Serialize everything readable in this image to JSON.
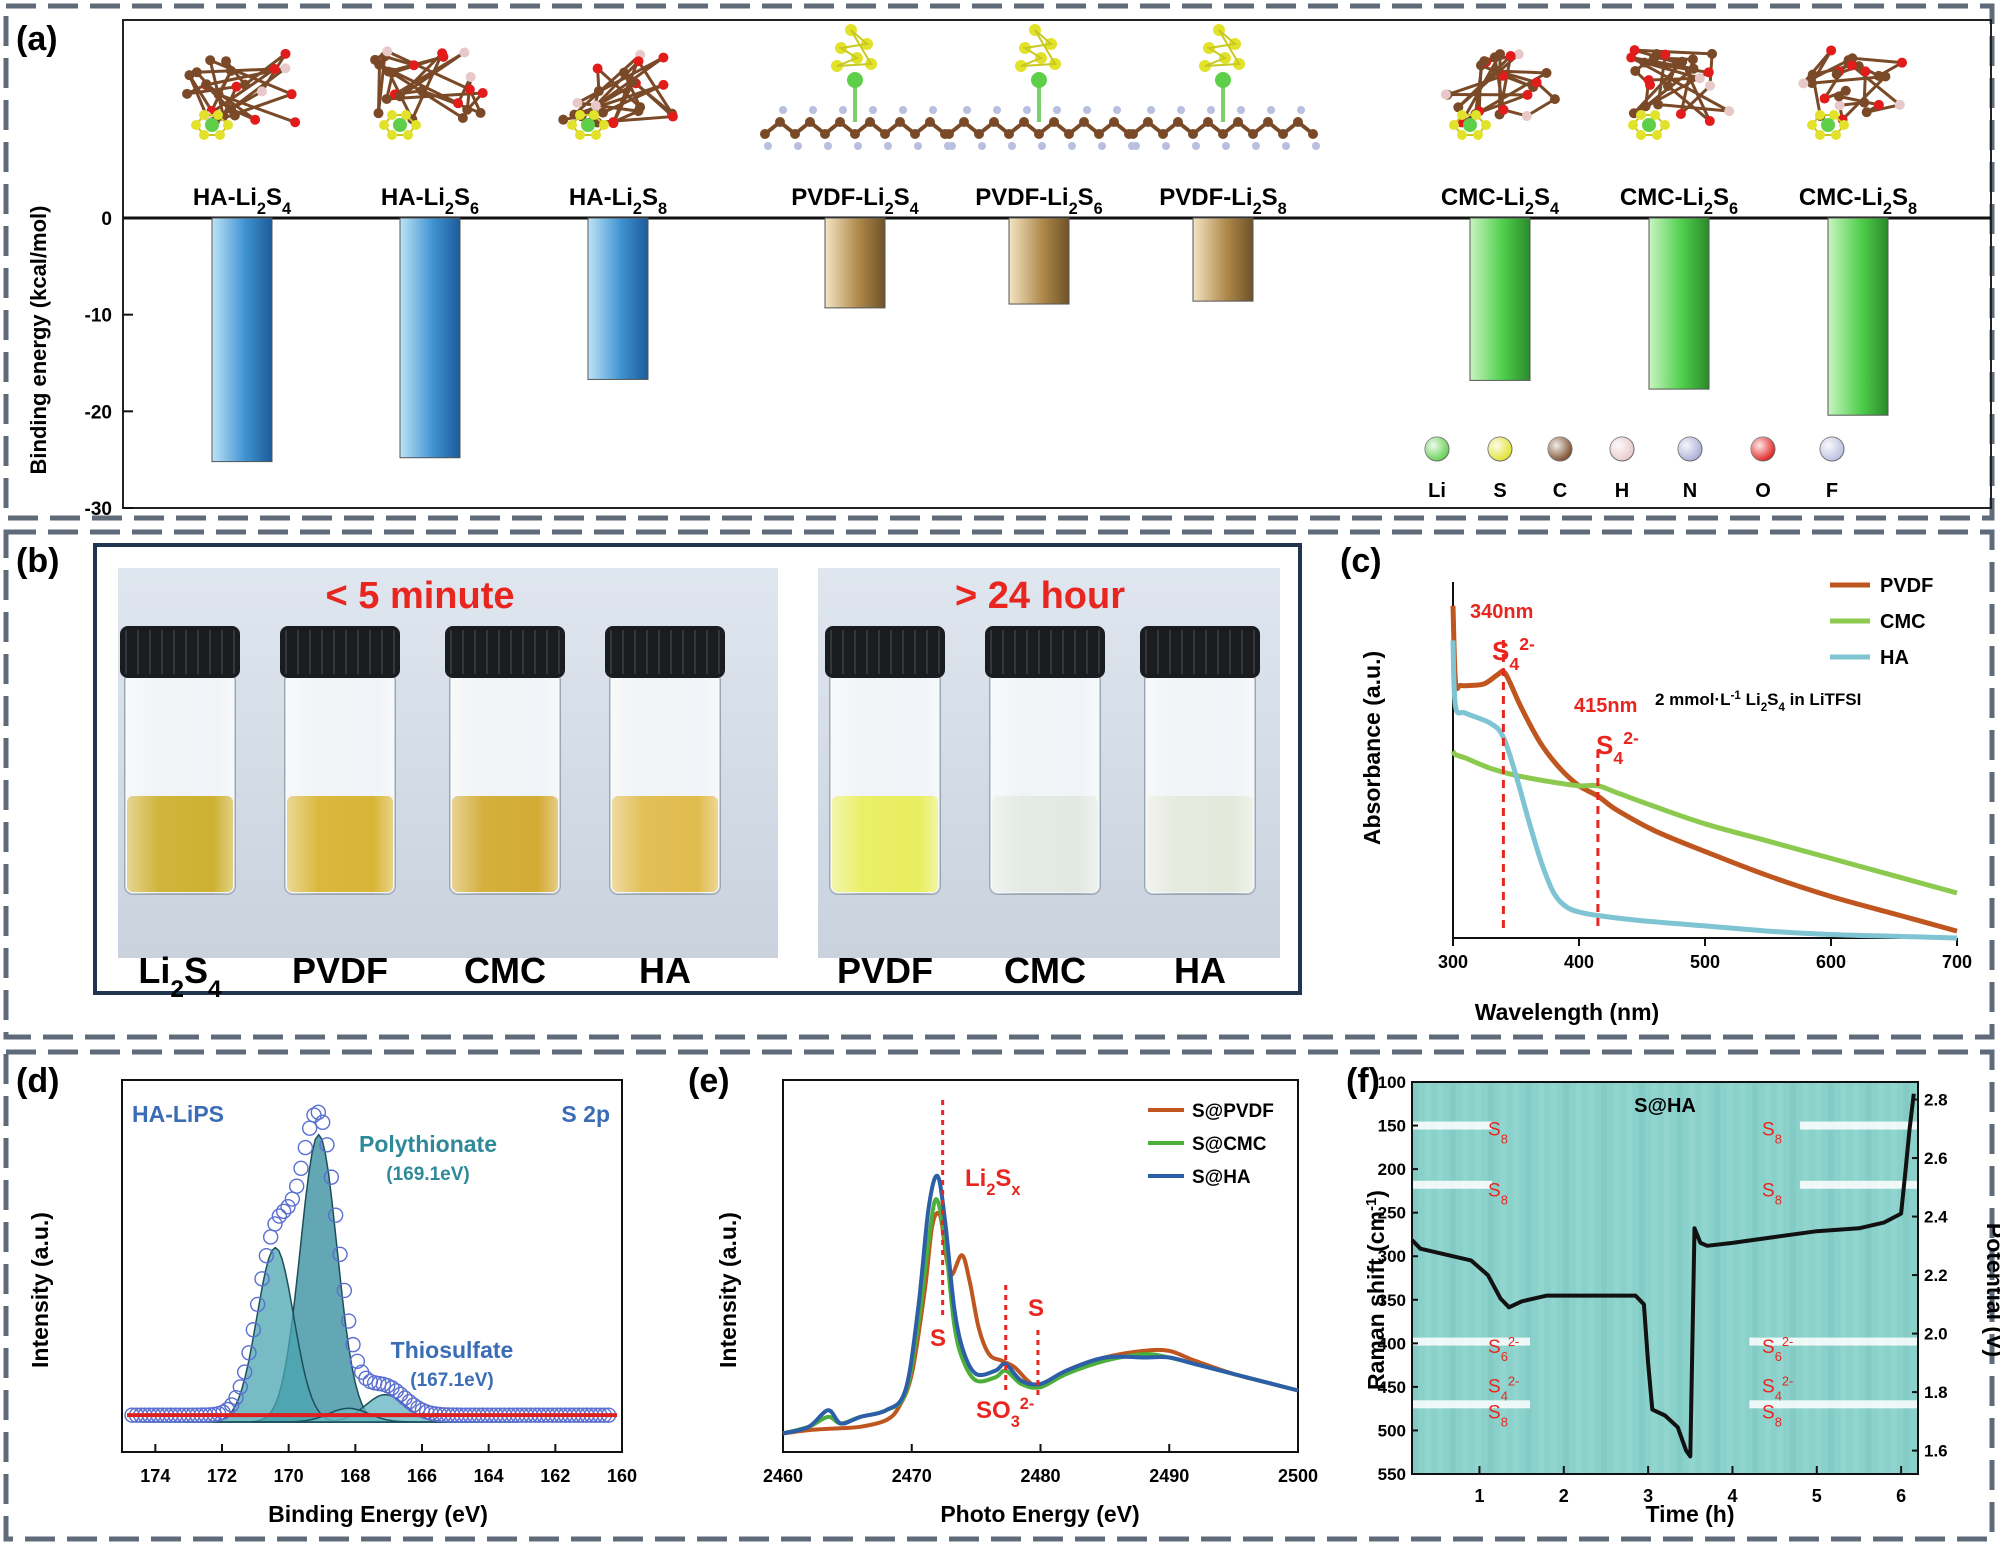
{
  "panels": {
    "a": "(a)",
    "b": "(b)",
    "c": "(c)",
    "d": "(d)",
    "e": "(e)",
    "f": "(f)"
  },
  "colors": {
    "frame": "#5f6b78",
    "red": "#e8261f",
    "blue_bar": "#3f93d2",
    "gold_bar": "#b08a4c",
    "green_bar": "#4fcf4c",
    "pvdf": "#c0561f",
    "cmc": "#8cc94f",
    "ha": "#7ec4d2",
    "e_pvdf": "#c0561f",
    "e_cmc": "#4caf3a",
    "e_ha": "#2c5fa8",
    "d_env": "#5a6fd0",
    "d_fill": "#2e8a99",
    "d_base": "#e02020",
    "f_bg": "#8ad1cb",
    "f_text": "#e8261f"
  },
  "chart_data": [
    {
      "id": "a",
      "type": "bar",
      "ylabel": "Binding energy (kcal/mol)",
      "ylim": [
        -30,
        0
      ],
      "yticks": [
        0,
        -10,
        -20,
        -30
      ],
      "categories": [
        "HA-Li2S4",
        "HA-Li2S6",
        "HA-Li2S8",
        "PVDF-Li2S4",
        "PVDF-Li2S6",
        "PVDF-Li2S8",
        "CMC-Li2S4",
        "CMC-Li2S6",
        "CMC-Li2S8"
      ],
      "labels": [
        {
          "pre": "HA-Li",
          "s1": "2",
          "mid": "S",
          "s2": "4"
        },
        {
          "pre": "HA-Li",
          "s1": "2",
          "mid": "S",
          "s2": "6"
        },
        {
          "pre": "HA-Li",
          "s1": "2",
          "mid": "S",
          "s2": "8"
        },
        {
          "pre": "PVDF-Li",
          "s1": "2",
          "mid": "S",
          "s2": "4"
        },
        {
          "pre": "PVDF-Li",
          "s1": "2",
          "mid": "S",
          "s2": "6"
        },
        {
          "pre": "PVDF-Li",
          "s1": "2",
          "mid": "S",
          "s2": "8"
        },
        {
          "pre": "CMC-Li",
          "s1": "2",
          "mid": "S",
          "s2": "4"
        },
        {
          "pre": "CMC-Li",
          "s1": "2",
          "mid": "S",
          "s2": "6"
        },
        {
          "pre": "CMC-Li",
          "s1": "2",
          "mid": "S",
          "s2": "8"
        }
      ],
      "values": [
        -25.2,
        -24.8,
        -16.7,
        -9.3,
        -8.9,
        -8.6,
        -16.8,
        -17.7,
        -20.4
      ],
      "groups": [
        "HA",
        "HA",
        "HA",
        "PVDF",
        "PVDF",
        "PVDF",
        "CMC",
        "CMC",
        "CMC"
      ],
      "atom_legend": [
        {
          "label": "Li",
          "color": "#5fcf4a"
        },
        {
          "label": "S",
          "color": "#e2e22a"
        },
        {
          "label": "C",
          "color": "#7a4a28"
        },
        {
          "label": "H",
          "color": "#e8c8c8"
        },
        {
          "label": "N",
          "color": "#a7acd6"
        },
        {
          "label": "O",
          "color": "#e21b1b"
        },
        {
          "label": "F",
          "color": "#b9bfe0"
        }
      ]
    },
    {
      "id": "c",
      "type": "line",
      "xlabel": "Wavelength (nm)",
      "ylabel": "Absorbance (a.u.)",
      "xlim": [
        300,
        700
      ],
      "xticks": [
        300,
        400,
        500,
        600,
        700
      ],
      "annotation": {
        "pre": "2 mmol·L",
        "sup": "-1",
        "mid": " Li",
        "sub1": "2",
        "mid2": "S",
        "sub2": "4",
        "post": " in LiTFSI"
      },
      "markers": [
        {
          "x": 340,
          "label": "340nm",
          "ion": "S",
          "sub": "4",
          "sup": "2-"
        },
        {
          "x": 415,
          "label": "415nm",
          "ion": "S",
          "sub": "4",
          "sup": "2-"
        }
      ],
      "series": [
        {
          "name": "PVDF",
          "x": [
            300,
            302,
            306,
            315,
            325,
            335,
            340,
            345,
            355,
            370,
            385,
            400,
            415,
            430,
            460,
            500,
            550,
            600,
            650,
            700
          ],
          "y": [
            0.96,
            0.74,
            0.73,
            0.73,
            0.735,
            0.76,
            0.77,
            0.74,
            0.66,
            0.56,
            0.49,
            0.44,
            0.41,
            0.37,
            0.31,
            0.25,
            0.18,
            0.12,
            0.07,
            0.02
          ]
        },
        {
          "name": "CMC",
          "x": [
            300,
            302,
            310,
            330,
            350,
            380,
            400,
            415,
            430,
            460,
            500,
            550,
            600,
            650,
            700
          ],
          "y": [
            0.54,
            0.53,
            0.52,
            0.49,
            0.47,
            0.45,
            0.44,
            0.44,
            0.42,
            0.38,
            0.33,
            0.28,
            0.23,
            0.18,
            0.13
          ]
        },
        {
          "name": "HA",
          "x": [
            300,
            302,
            310,
            330,
            340,
            350,
            360,
            370,
            380,
            390,
            400,
            415,
            450,
            500,
            550,
            600,
            650,
            700
          ],
          "y": [
            0.86,
            0.67,
            0.65,
            0.62,
            0.58,
            0.47,
            0.34,
            0.22,
            0.13,
            0.09,
            0.075,
            0.065,
            0.05,
            0.035,
            0.02,
            0.01,
            0.005,
            0.0
          ]
        }
      ]
    },
    {
      "id": "d",
      "type": "line",
      "title": "HA-LiPS",
      "tag": "S 2p",
      "xlabel": "Binding Energy (eV)",
      "ylabel": "Intensity (a.u.)",
      "xlim": [
        175,
        160
      ],
      "xticks": [
        174,
        172,
        170,
        168,
        166,
        164,
        162,
        160
      ],
      "peaks": [
        {
          "name": "Polythionate",
          "value": "(169.1eV)",
          "center": 169.1,
          "height": 0.84,
          "sigma": 0.55
        },
        {
          "name": "",
          "value": "",
          "center": 170.4,
          "height": 0.51,
          "sigma": 0.55
        },
        {
          "name": "Thiosulfate",
          "value": "(167.1eV)",
          "center": 167.1,
          "height": 0.08,
          "sigma": 0.6
        },
        {
          "name": "",
          "value": "",
          "center": 168.2,
          "height": 0.04,
          "sigma": 0.6
        }
      ]
    },
    {
      "id": "e",
      "type": "line",
      "xlabel": "Photo Energy (eV)",
      "ylabel": "Intensity (a.u.)",
      "xlim": [
        2460,
        2500
      ],
      "xticks": [
        2460,
        2470,
        2480,
        2490,
        2500
      ],
      "annotations": [
        {
          "text": "Li",
          "sub": "2",
          "mid": "S",
          "sub2": "x",
          "x": 2473.8
        },
        {
          "text": "S",
          "x": 2472.4
        },
        {
          "text": "S",
          "x": 2479.8
        },
        {
          "text": "SO",
          "sub": "3",
          "sup": "2-",
          "x": 2477.3
        }
      ],
      "series": [
        {
          "name": "S@PVDF",
          "x": [
            2460,
            2462,
            2464,
            2466,
            2468,
            2469,
            2470,
            2471,
            2471.6,
            2472.2,
            2472.7,
            2473.1,
            2473.9,
            2474.5,
            2475.2,
            2476,
            2477,
            2478,
            2479,
            2480,
            2482,
            2485,
            2488,
            2490,
            2492,
            2495,
            2498,
            2500
          ],
          "y": [
            0.02,
            0.03,
            0.035,
            0.04,
            0.06,
            0.1,
            0.2,
            0.45,
            0.65,
            0.68,
            0.55,
            0.5,
            0.56,
            0.48,
            0.34,
            0.26,
            0.24,
            0.22,
            0.18,
            0.16,
            0.21,
            0.25,
            0.27,
            0.27,
            0.24,
            0.2,
            0.17,
            0.15
          ]
        },
        {
          "name": "S@CMC",
          "x": [
            2460,
            2462,
            2463.5,
            2464.5,
            2466,
            2468,
            2469.5,
            2470.5,
            2471.3,
            2471.9,
            2472.6,
            2473.3,
            2474,
            2475,
            2476.5,
            2477.3,
            2478.5,
            2480,
            2482,
            2485,
            2488,
            2490,
            2492,
            2495,
            2498,
            2500
          ],
          "y": [
            0.02,
            0.04,
            0.07,
            0.05,
            0.07,
            0.09,
            0.14,
            0.35,
            0.6,
            0.73,
            0.6,
            0.35,
            0.24,
            0.18,
            0.19,
            0.21,
            0.17,
            0.16,
            0.2,
            0.24,
            0.26,
            0.25,
            0.23,
            0.2,
            0.17,
            0.15
          ]
        },
        {
          "name": "S@HA",
          "x": [
            2460,
            2462,
            2463.5,
            2464.5,
            2466,
            2468,
            2469.5,
            2470.5,
            2471.3,
            2472,
            2472.6,
            2473.3,
            2474,
            2475,
            2476.5,
            2477.3,
            2478.5,
            2480,
            2482,
            2485,
            2488,
            2490,
            2492,
            2495,
            2498,
            2500
          ],
          "y": [
            0.02,
            0.04,
            0.09,
            0.05,
            0.07,
            0.09,
            0.15,
            0.4,
            0.7,
            0.8,
            0.66,
            0.4,
            0.27,
            0.2,
            0.21,
            0.23,
            0.18,
            0.17,
            0.21,
            0.25,
            0.25,
            0.25,
            0.23,
            0.2,
            0.17,
            0.15
          ]
        }
      ]
    },
    {
      "id": "f",
      "type": "heatmap",
      "title": "S@HA",
      "xlabel": "Time (h)",
      "ylabel": "Raman shift (cm",
      "ylabel_sup": "-1",
      "ylabel_end": ")",
      "y2label": "Potential (V)",
      "xlim": [
        0.2,
        6.2
      ],
      "xticks": [
        1,
        2,
        3,
        4,
        5,
        6
      ],
      "ylim": [
        100,
        550
      ],
      "yticks": [
        100,
        150,
        200,
        250,
        300,
        350,
        400,
        450,
        500,
        550
      ],
      "y2lim": [
        1.52,
        2.86
      ],
      "y2ticks": [
        1.6,
        1.8,
        2.0,
        2.2,
        2.4,
        2.6,
        2.8
      ],
      "bands": [
        150,
        218,
        398,
        470
      ],
      "species_left": [
        {
          "ion": "S",
          "sub": "8",
          "sup": "",
          "shift": 152
        },
        {
          "ion": "S",
          "sub": "8",
          "sup": "",
          "shift": 222
        },
        {
          "ion": "S",
          "sub": "6",
          "sup": "2-",
          "shift": 402
        },
        {
          "ion": "S",
          "sub": "4",
          "sup": "2-",
          "shift": 447
        },
        {
          "ion": "S",
          "sub": "8",
          "sup": "",
          "shift": 477
        }
      ],
      "species_right": [
        {
          "ion": "S",
          "sub": "8",
          "sup": "",
          "shift": 152
        },
        {
          "ion": "S",
          "sub": "8",
          "sup": "",
          "shift": 222
        },
        {
          "ion": "S",
          "sub": "6",
          "sup": "2-",
          "shift": 402
        },
        {
          "ion": "S",
          "sub": "4",
          "sup": "2-",
          "shift": 447
        },
        {
          "ion": "S",
          "sub": "8",
          "sup": "",
          "shift": 477
        }
      ],
      "potential": {
        "t": [
          0.2,
          0.3,
          0.6,
          0.9,
          1.1,
          1.25,
          1.35,
          1.5,
          1.8,
          2.2,
          2.6,
          2.85,
          2.95,
          3.0,
          3.05,
          3.2,
          3.35,
          3.45,
          3.5,
          3.55,
          3.62,
          3.7,
          4.0,
          4.5,
          5.0,
          5.5,
          5.8,
          6.0,
          6.05,
          6.1,
          6.15
        ],
        "v": [
          2.32,
          2.29,
          2.27,
          2.25,
          2.2,
          2.12,
          2.09,
          2.11,
          2.13,
          2.13,
          2.13,
          2.13,
          2.1,
          1.9,
          1.74,
          1.72,
          1.68,
          1.6,
          1.58,
          2.36,
          2.31,
          2.3,
          2.31,
          2.33,
          2.35,
          2.36,
          2.38,
          2.41,
          2.55,
          2.7,
          2.82
        ]
      }
    }
  ],
  "photo": {
    "title_left": "< 5 minute",
    "title_right": "> 24 hour",
    "vials_left": [
      {
        "label": "Li",
        "sub": "2",
        "mid": "S",
        "sub2": "4",
        "liquid": "#c8a81a"
      },
      {
        "label": "PVDF",
        "liquid": "#d4ac1e"
      },
      {
        "label": "CMC",
        "liquid": "#cda21c"
      },
      {
        "label": "HA",
        "liquid": "#ddb43a"
      }
    ],
    "vials_right": [
      {
        "label": "PVDF",
        "liquid": "#e6ec4c"
      },
      {
        "label": "CMC",
        "liquid": "#dfe6df"
      },
      {
        "label": "HA",
        "liquid": "#e2e6d8"
      }
    ]
  }
}
